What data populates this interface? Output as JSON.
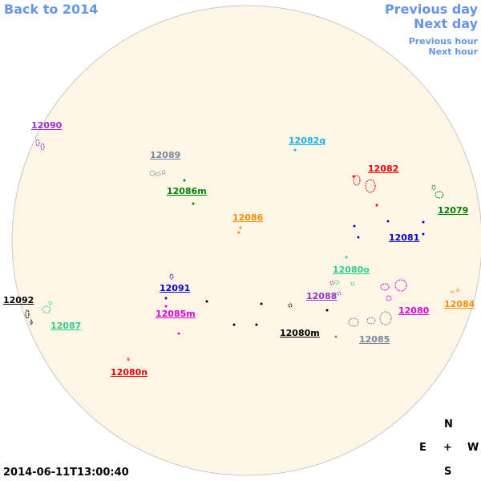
{
  "navigation": {
    "back": "Back to 2014",
    "previous_day": "Previous day",
    "next_day": "Next day",
    "previous_hour": "Previous hour",
    "next_hour": "Next hour"
  },
  "regions": [
    {
      "label": "12090",
      "color": "#9933cc"
    },
    {
      "label": "12089",
      "color": "#778899"
    },
    {
      "label": "12082q",
      "color": "#1ab2e6"
    },
    {
      "label": "12082",
      "color": "#ee0000"
    },
    {
      "label": "12086m",
      "color": "#008000"
    },
    {
      "label": "12079",
      "color": "#008000"
    },
    {
      "label": "12086",
      "color": "#ff8c00"
    },
    {
      "label": "12081",
      "color": "#0000cc"
    },
    {
      "label": "12080o",
      "color": "#2ecc8f"
    },
    {
      "label": "12091",
      "color": "#0000cc"
    },
    {
      "label": "12088",
      "color": "#9933cc"
    },
    {
      "label": "12092",
      "color": "#000000"
    },
    {
      "label": "12085m",
      "color": "#dd00dd"
    },
    {
      "label": "12080",
      "color": "#dd00dd"
    },
    {
      "label": "12084",
      "color": "#ff8c00"
    },
    {
      "label": "12087",
      "color": "#2ecc8f"
    },
    {
      "label": "12080m",
      "color": "#000000"
    },
    {
      "label": "12085",
      "color": "#778899"
    },
    {
      "label": "12080n",
      "color": "#ee0000"
    }
  ],
  "compass": {
    "north": "N",
    "east": "E",
    "center": "+",
    "west": "W",
    "south": "S"
  },
  "timestamp": "2014-06-11T13:00:40"
}
